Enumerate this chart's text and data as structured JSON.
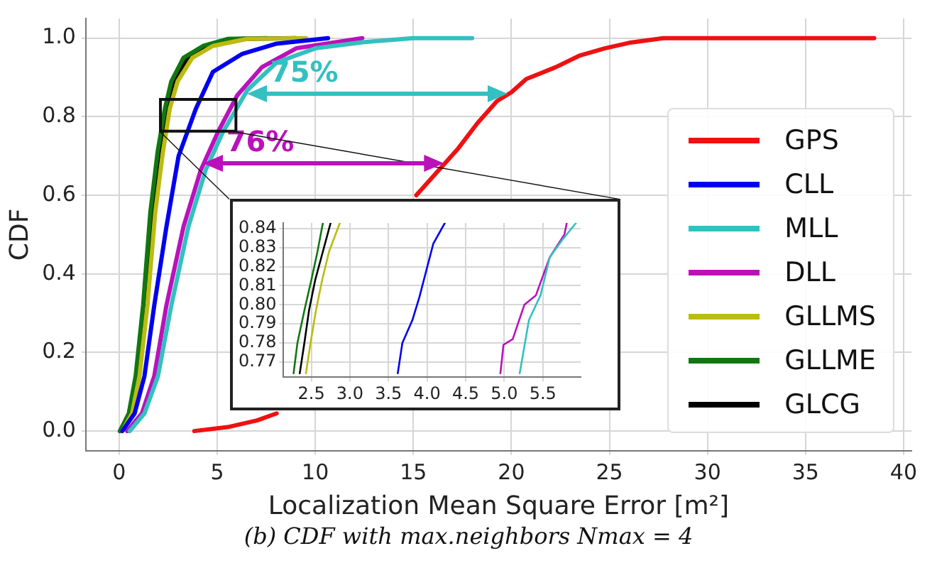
{
  "chart_data": [
    {
      "type": "line",
      "xlabel": "Localization Mean Square Error [m²]",
      "ylabel": "CDF",
      "xlim": [
        -1.7,
        40.4
      ],
      "ylim": [
        -0.05,
        1.05
      ],
      "xticks": [
        0,
        5,
        10,
        15,
        20,
        25,
        30,
        35,
        40
      ],
      "yticks": [
        {
          "value": 0,
          "label": "0.0"
        },
        {
          "value": 0.2,
          "label": "0.2"
        },
        {
          "value": 0.4,
          "label": "0.4"
        },
        {
          "value": 0.6,
          "label": "0.6"
        },
        {
          "value": 0.8,
          "label": "0.8"
        },
        {
          "value": 1,
          "label": "1.0"
        }
      ],
      "grid": true,
      "legend": "bottom right",
      "marker": "none",
      "series": [
        {
          "name": "GPS",
          "color": "#ee1111",
          "x": [
            3.83,
            5.53,
            7.03,
            8.03,
            12,
            15.15,
            17.3,
            18.26,
            19.27,
            20.0,
            20.76,
            22.26,
            23.5,
            24.76,
            26.0,
            27.75,
            38.5
          ],
          "values": [
            0,
            0.01,
            0.027,
            0.045,
            null,
            0.6,
            0.72,
            0.783,
            0.84,
            0.862,
            0.896,
            0.926,
            0.956,
            0.974,
            0.988,
            1.0,
            1.0
          ]
        },
        {
          "name": "CLL",
          "color": "#0000ee",
          "x": [
            0.16,
            0.79,
            1.29,
            1.79,
            2.41,
            3.03,
            3.91,
            4.78,
            6.28,
            8.03,
            10.65
          ],
          "values": [
            0,
            0.045,
            0.14,
            0.32,
            0.52,
            0.7,
            0.82,
            0.914,
            0.96,
            0.986,
            1.0
          ]
        },
        {
          "name": "MLL",
          "color": "#33c0c0",
          "x": [
            0.54,
            1.29,
            1.98,
            2.66,
            3.53,
            4.41,
            5.28,
            6.53,
            8.03,
            10.0,
            12.5,
            15.0,
            18.0
          ],
          "values": [
            0,
            0.045,
            0.14,
            0.32,
            0.52,
            0.664,
            0.76,
            0.867,
            0.938,
            0.974,
            0.99,
            1.0,
            1.0
          ]
        },
        {
          "name": "DLL",
          "color": "#bb11bb",
          "x": [
            0.41,
            1.16,
            1.79,
            2.41,
            3.28,
            4.16,
            5.03,
            6.03,
            7.28,
            9.03,
            12.4
          ],
          "values": [
            0,
            0.045,
            0.14,
            0.32,
            0.52,
            0.664,
            0.76,
            0.855,
            0.926,
            0.974,
            1.0
          ]
        },
        {
          "name": "GLLMS",
          "color": "#bbbb11",
          "x": [
            0.16,
            0.66,
            1.04,
            1.44,
            1.84,
            2.23,
            2.58,
            2.98,
            3.73,
            4.78,
            6.53,
            9.53
          ],
          "values": [
            0,
            0.045,
            0.14,
            0.32,
            0.557,
            0.71,
            0.82,
            0.89,
            0.95,
            0.98,
            0.998,
            1.0
          ]
        },
        {
          "name": "GLLME",
          "color": "#117711",
          "x": [
            0.04,
            0.49,
            0.84,
            1.22,
            1.59,
            1.96,
            2.33,
            2.66,
            3.28,
            4.28,
            5.53,
            7.53
          ],
          "values": [
            0,
            0.045,
            0.14,
            0.32,
            0.557,
            0.71,
            0.82,
            0.89,
            0.95,
            0.98,
            0.998,
            1.0
          ]
        },
        {
          "name": "GLCG",
          "color": "#000000",
          "x": [
            0.04,
            0.54,
            0.9,
            1.29,
            1.65,
            2.03,
            2.4,
            2.78,
            3.53,
            4.53,
            6.28,
            9.0
          ],
          "values": [
            0,
            0.045,
            0.14,
            0.32,
            0.557,
            0.71,
            0.82,
            0.89,
            0.95,
            0.98,
            0.998,
            1.0
          ]
        }
      ],
      "annotations": [
        {
          "text": "75%",
          "x": 6.55,
          "y": 0.857
        },
        {
          "text": "76%",
          "x": 4.3,
          "y": 0.68
        },
        "(b) CDF with max.neighbors Nmax = 4"
      ]
    },
    {
      "type": "line",
      "xlim": [
        2.14,
        5.99
      ],
      "ylim": [
        0.762,
        0.843
      ],
      "xticks": [
        {
          "value": 2.5,
          "label": "2.5"
        },
        {
          "value": 3,
          "label": "3.0"
        },
        {
          "value": 3.5,
          "label": "3.5"
        },
        {
          "value": 4,
          "label": "4.0"
        },
        {
          "value": 4.5,
          "label": "4.5"
        },
        {
          "value": 5,
          "label": "5.0"
        },
        {
          "value": 5.5,
          "label": "5.5"
        }
      ],
      "yticks": [
        0.77,
        0.78,
        0.79,
        {
          "value": 0.8,
          "label": "0.80"
        },
        0.81,
        0.82,
        0.83,
        0.84
      ],
      "grid": true,
      "marker": "none",
      "series": [
        {
          "color": "#0000ee",
          "x": [
            3.62,
            3.68,
            3.81,
            3.9,
            3.99,
            4.08,
            4.23
          ],
          "values": [
            0.764,
            0.78,
            0.792,
            0.804,
            0.818,
            0.832,
            0.843
          ]
        },
        {
          "color": "#33c0c0",
          "x": [
            5.2,
            5.32,
            5.47,
            5.59,
            5.75,
            5.93
          ],
          "values": [
            0.764,
            0.792,
            0.805,
            0.825,
            0.834,
            0.843
          ]
        },
        {
          "color": "#bb11bb",
          "x": [
            4.95,
            4.99,
            5.11,
            5.26,
            5.41,
            5.59,
            5.78,
            5.81
          ],
          "values": [
            0.764,
            0.779,
            0.782,
            0.8,
            0.805,
            0.825,
            0.837,
            0.843
          ]
        },
        {
          "color": "#bbbb11",
          "x": [
            2.43,
            2.49,
            2.56,
            2.64,
            2.73,
            2.87
          ],
          "values": [
            0.764,
            0.78,
            0.797,
            0.813,
            0.828,
            0.843
          ]
        },
        {
          "color": "#117711",
          "x": [
            2.27,
            2.32,
            2.41,
            2.5,
            2.58,
            2.65
          ],
          "values": [
            0.764,
            0.78,
            0.797,
            0.813,
            0.828,
            0.843
          ]
        },
        {
          "color": "#000000",
          "x": [
            2.35,
            2.41,
            2.47,
            2.55,
            2.65,
            2.75
          ],
          "values": [
            0.764,
            0.78,
            0.797,
            0.813,
            0.828,
            0.843
          ]
        }
      ]
    }
  ]
}
